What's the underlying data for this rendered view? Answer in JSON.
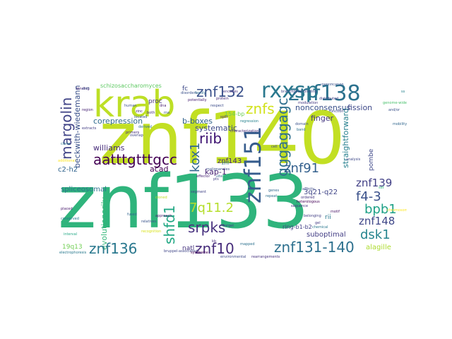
{
  "words": [
    {
      "text": "znf140",
      "color": "#c2df23"
    },
    {
      "text": "znf133",
      "color": "#2fb47c"
    },
    {
      "text": "krab",
      "color": "#bddf26"
    },
    {
      "text": "znf138",
      "color": "#2c728e"
    },
    {
      "text": "rxxsp",
      "color": "#2a788e"
    },
    {
      "text": "znf132",
      "color": "#3b518b"
    },
    {
      "text": "znfs",
      "color": "#d2e21b"
    },
    {
      "text": "margolin",
      "color": "#414487"
    },
    {
      "text": "beckwith-wiedemann",
      "color": "#3b528b"
    },
    {
      "text": "riib",
      "color": "#3b0f70"
    },
    {
      "text": "kox1",
      "color": "#31688e"
    },
    {
      "text": "gggaggagc",
      "color": "#2e6f8e"
    },
    {
      "text": "znf151",
      "color": "#365c8d"
    },
    {
      "text": "aatttgtttgcc",
      "color": "#440154"
    },
    {
      "text": "znf91",
      "color": "#34608d"
    },
    {
      "text": "f4-3",
      "color": "#3b518b"
    },
    {
      "text": "bpb1",
      "color": "#1fa187"
    },
    {
      "text": "7q11.2",
      "color": "#b5de2b"
    },
    {
      "text": "srpks",
      "color": "#46307e"
    },
    {
      "text": "shfd1",
      "color": "#22a884"
    },
    {
      "text": "znf136",
      "color": "#2a788e"
    },
    {
      "text": "znf10",
      "color": "#472d7b"
    },
    {
      "text": "znf131-140",
      "color": "#2d708e"
    },
    {
      "text": "dsk1",
      "color": "#25848e"
    },
    {
      "text": "znf148",
      "color": "#3f4788"
    },
    {
      "text": "znf139",
      "color": "#424086"
    },
    {
      "text": "corepression",
      "color": "#2f6b8e"
    },
    {
      "text": "b-boxes",
      "color": "#33638d"
    },
    {
      "text": "systematic",
      "color": "#3e4a89"
    },
    {
      "text": "nonconsensus",
      "color": "#3b528b"
    },
    {
      "text": "fission",
      "color": "#3e4989"
    },
    {
      "text": "finger",
      "color": "#453781"
    },
    {
      "text": "straightforward",
      "color": "#27808e"
    },
    {
      "text": "schizosaccharomyces",
      "color": "#5ec962"
    },
    {
      "text": "proc",
      "color": "#46327e"
    },
    {
      "text": "williams",
      "color": "#472c7a"
    },
    {
      "text": "acad",
      "color": "#440154"
    },
    {
      "text": "kap-1",
      "color": "#482475"
    },
    {
      "text": "znf143",
      "color": "#482878"
    },
    {
      "text": "spliceosomal",
      "color": "#2c728e"
    },
    {
      "text": "c2-h2",
      "color": "#32648e"
    },
    {
      "text": "ring-b1-b2",
      "color": "#424086"
    },
    {
      "text": "3q21-q22",
      "color": "#404688"
    },
    {
      "text": "suboptimal",
      "color": "#433e85"
    },
    {
      "text": "alagille",
      "color": "#addc30"
    },
    {
      "text": "19q13",
      "color": "#73d056"
    },
    {
      "text": "natl",
      "color": "#46337f"
    },
    {
      "text": "154-bp",
      "color": "#6ece58"
    },
    {
      "text": "evolutionarily",
      "color": "#35b779"
    },
    {
      "text": "fc",
      "color": "#3e4989"
    },
    {
      "text": "rii",
      "color": "#2a788e"
    },
    {
      "text": "pombe",
      "color": "#3f4889"
    },
    {
      "text": "identification",
      "color": "#3b528b"
    },
    {
      "text": "characterization",
      "color": "#472d7b"
    },
    {
      "text": "bruppel-associated",
      "color": "#404688"
    },
    {
      "text": "environmental",
      "color": "#3e4a89"
    },
    {
      "text": "rearrangements",
      "color": "#46317e"
    },
    {
      "text": "branchpoint-binding",
      "color": "#3f4889"
    },
    {
      "text": "disorders",
      "color": "#3b518b"
    },
    {
      "text": "effector",
      "color": "#482374"
    },
    {
      "text": "heterologous",
      "color": "#440256"
    },
    {
      "text": "segment",
      "color": "#414487"
    },
    {
      "text": "distributed",
      "color": "#424186"
    },
    {
      "text": "regression",
      "color": "#26828e"
    },
    {
      "text": "located",
      "color": "#3b528b"
    },
    {
      "text": "derived",
      "color": "#2c728e"
    },
    {
      "text": "primers",
      "color": "#472d7b"
    },
    {
      "text": "extracts",
      "color": "#433e85"
    },
    {
      "text": "overlap",
      "color": "#3f4788"
    },
    {
      "text": "additional",
      "color": "#fde725"
    },
    {
      "text": "potentially",
      "color": "#482173"
    },
    {
      "text": "cloned",
      "color": "#bddf26"
    },
    {
      "text": "family",
      "color": "#2e6e8e"
    },
    {
      "text": "respect",
      "color": "#3d4d8a"
    },
    {
      "text": "recognition",
      "color": "#d8e219"
    },
    {
      "text": "syndrome",
      "color": "#440154"
    },
    {
      "text": "relatives",
      "color": "#3a548c"
    },
    {
      "text": "conserved",
      "color": "#2a768e"
    },
    {
      "text": "electrophoresis",
      "color": "#29798e"
    },
    {
      "text": "approach",
      "color": "#481b6d"
    },
    {
      "text": "belonging",
      "color": "#423f85"
    },
    {
      "text": "malignancies",
      "color": "#3b528b"
    },
    {
      "text": "chemical",
      "color": "#2a778e"
    },
    {
      "text": "genes",
      "color": "#31688e"
    },
    {
      "text": "fused",
      "color": "#32658e"
    },
    {
      "text": "placed",
      "color": "#481a6c"
    },
    {
      "text": "affinity",
      "color": "#3e4c8a"
    },
    {
      "text": "modulation",
      "color": "#443983"
    },
    {
      "text": "ordered",
      "color": "#453882"
    },
    {
      "text": "human",
      "color": "#3c4f8a"
    },
    {
      "text": "mobility",
      "color": "#31678e"
    },
    {
      "text": "encodes",
      "color": "#46337f"
    },
    {
      "text": "mapped",
      "color": "#2c718e"
    },
    {
      "text": "motif",
      "color": "#471365"
    },
    {
      "text": "binding",
      "color": "#482576"
    },
    {
      "text": "shift",
      "color": "#3c508b"
    },
    {
      "text": "repeat",
      "color": "#2e6f8e"
    },
    {
      "text": "sequence",
      "color": "#463480"
    },
    {
      "text": "protein",
      "color": "#472c7a"
    },
    {
      "text": "region",
      "color": "#482475"
    },
    {
      "text": "clone",
      "color": "#2a788e"
    },
    {
      "text": "domain",
      "color": "#3b528b"
    },
    {
      "text": "genome-wide",
      "color": "#4ac16d"
    },
    {
      "text": "function",
      "color": "#3f4788"
    },
    {
      "text": "chromosomal",
      "color": "#fde725"
    },
    {
      "text": "interval",
      "color": "#22a884"
    },
    {
      "text": "analysis",
      "color": "#3e4989"
    },
    {
      "text": "zinc",
      "color": "#472a7a"
    },
    {
      "text": "target",
      "color": "#424086"
    },
    {
      "text": "site",
      "color": "#31688e"
    },
    {
      "text": "gel",
      "color": "#443a83"
    },
    {
      "text": "and/or",
      "color": "#3b528b"
    },
    {
      "text": "band",
      "color": "#2d708e"
    },
    {
      "text": "split",
      "color": "#482878"
    },
    {
      "text": "both",
      "color": "#46307e"
    },
    {
      "text": "cell",
      "color": "#3e4989"
    },
    {
      "text": "dna",
      "color": "#481f70"
    },
    {
      "text": "rna",
      "color": "#3b518b"
    },
    {
      "text": "set",
      "color": "#35b779"
    },
    {
      "text": "pts",
      "color": "#433e85"
    },
    {
      "text": "znf",
      "color": "#2c728e"
    },
    {
      "text": "ss",
      "color": "#26828e"
    },
    {
      "text": "kb",
      "color": "#472d7b"
    }
  ]
}
